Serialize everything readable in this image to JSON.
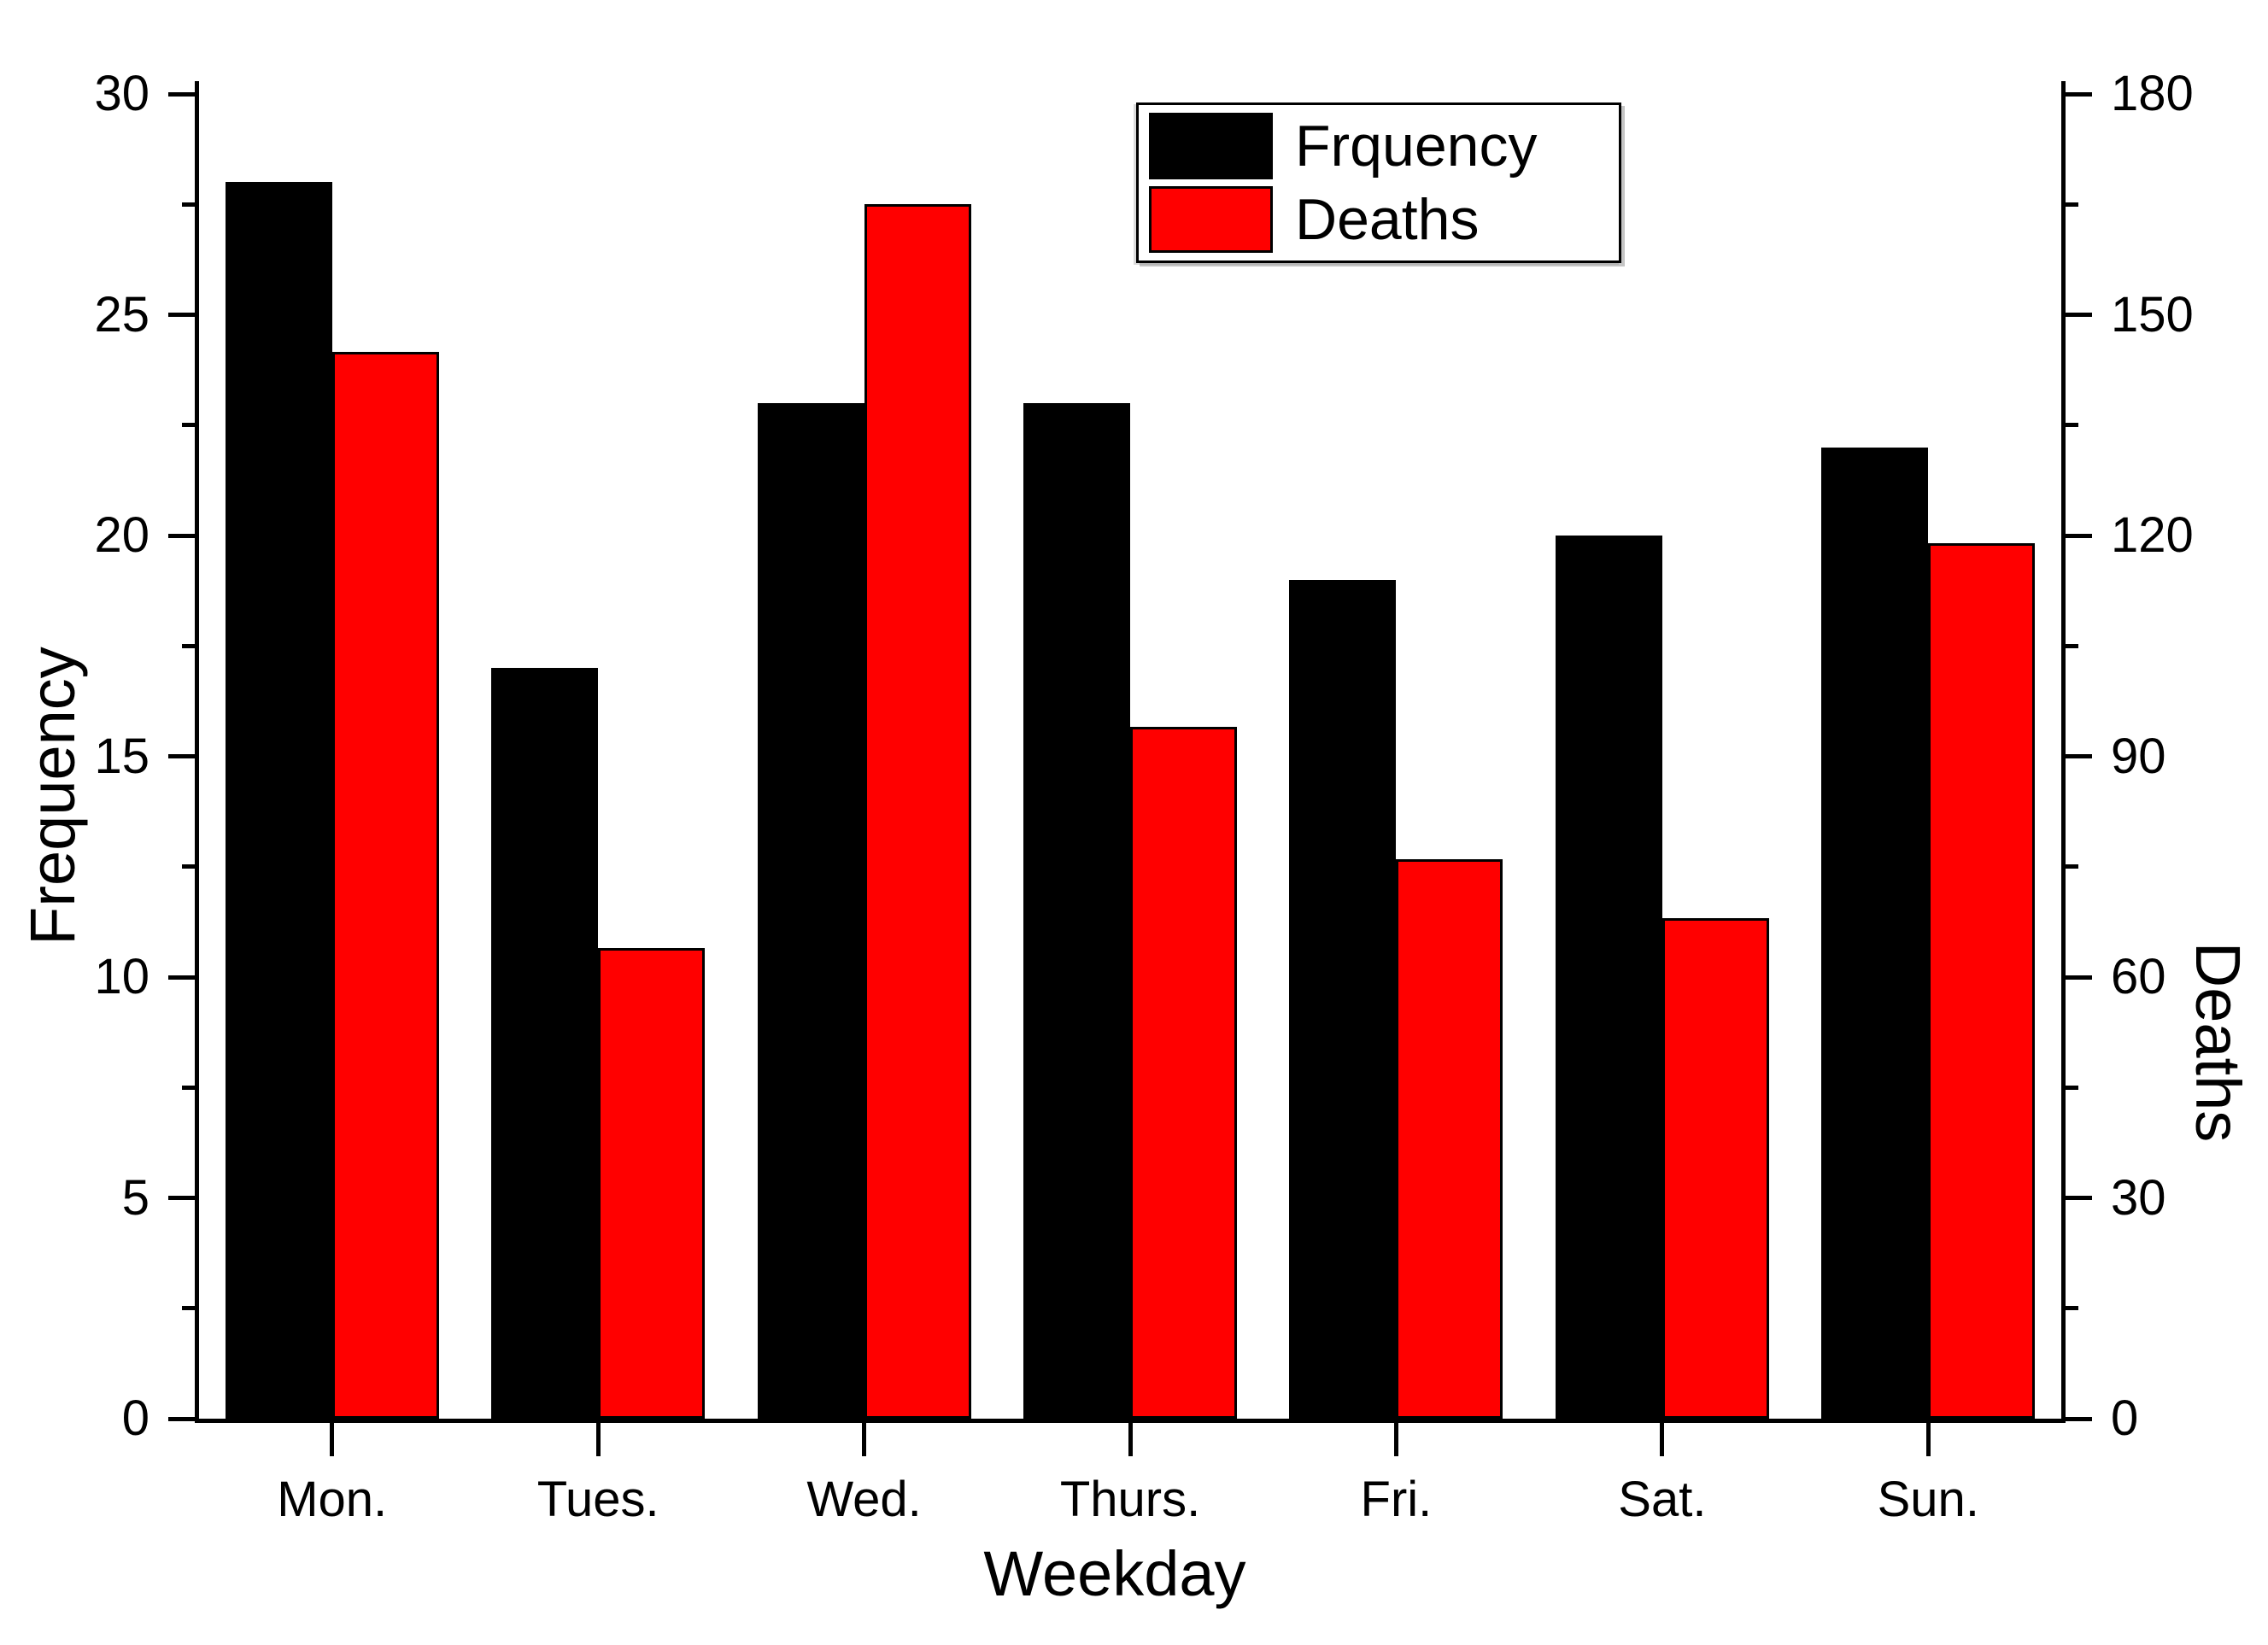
{
  "chart_data": {
    "type": "bar",
    "title": "",
    "categories": [
      "Mon.",
      "Tues.",
      "Wed.",
      "Thurs.",
      "Fri.",
      "Sat.",
      "Sun."
    ],
    "series": [
      {
        "name": "Frquency",
        "color": "#000000",
        "axis": "left",
        "values": [
          28,
          17,
          23,
          23,
          19,
          20,
          22
        ]
      },
      {
        "name": "Deaths",
        "color": "#ff0000",
        "axis": "right",
        "values": [
          145,
          64,
          165,
          94,
          76,
          68,
          119
        ]
      }
    ],
    "xlabel": "Weekday",
    "ylabel_left": "Frequency",
    "ylabel_right": "Deaths",
    "ylim_left": [
      0,
      30
    ],
    "ylim_right": [
      0,
      180
    ],
    "yticks_left": [
      0,
      5,
      10,
      15,
      20,
      25,
      30
    ],
    "yticks_right": [
      0,
      30,
      60,
      90,
      120,
      150,
      180
    ],
    "minor_ticks": "midpoints-between-majors",
    "grid": false,
    "legend": {
      "position": "top-center",
      "entries": [
        "Frquency",
        "Deaths"
      ]
    }
  },
  "colors": {
    "background": "#ffffff",
    "axis": "#000000",
    "bar_frequency": "#000000",
    "bar_deaths": "#ff0000"
  }
}
